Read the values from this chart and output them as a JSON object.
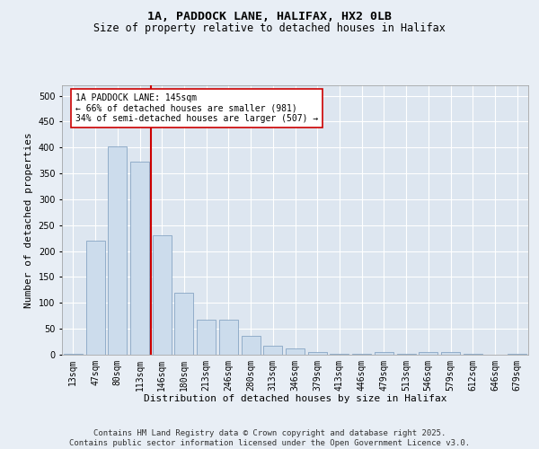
{
  "title1": "1A, PADDOCK LANE, HALIFAX, HX2 0LB",
  "title2": "Size of property relative to detached houses in Halifax",
  "xlabel": "Distribution of detached houses by size in Halifax",
  "ylabel": "Number of detached properties",
  "categories": [
    "13sqm",
    "47sqm",
    "80sqm",
    "113sqm",
    "146sqm",
    "180sqm",
    "213sqm",
    "246sqm",
    "280sqm",
    "313sqm",
    "346sqm",
    "379sqm",
    "413sqm",
    "446sqm",
    "479sqm",
    "513sqm",
    "546sqm",
    "579sqm",
    "612sqm",
    "646sqm",
    "679sqm"
  ],
  "values": [
    2,
    220,
    403,
    373,
    230,
    119,
    68,
    68,
    37,
    17,
    13,
    6,
    1,
    1,
    6,
    1,
    6,
    6,
    1,
    0,
    1
  ],
  "bar_color": "#ccdcec",
  "bar_edge_color": "#7799bb",
  "vline_color": "#cc0000",
  "annotation_text": "1A PADDOCK LANE: 145sqm\n← 66% of detached houses are smaller (981)\n34% of semi-detached houses are larger (507) →",
  "annotation_box_color": "#ffffff",
  "annotation_box_edge_color": "#cc0000",
  "ylim": [
    0,
    520
  ],
  "yticks": [
    0,
    50,
    100,
    150,
    200,
    250,
    300,
    350,
    400,
    450,
    500
  ],
  "plot_bg_color": "#dde6f0",
  "fig_bg_color": "#e8eef5",
  "grid_color": "#ffffff",
  "footer_text": "Contains HM Land Registry data © Crown copyright and database right 2025.\nContains public sector information licensed under the Open Government Licence v3.0.",
  "title_fontsize": 9.5,
  "subtitle_fontsize": 8.5,
  "axis_label_fontsize": 8,
  "tick_fontsize": 7,
  "annotation_fontsize": 7,
  "footer_fontsize": 6.5
}
